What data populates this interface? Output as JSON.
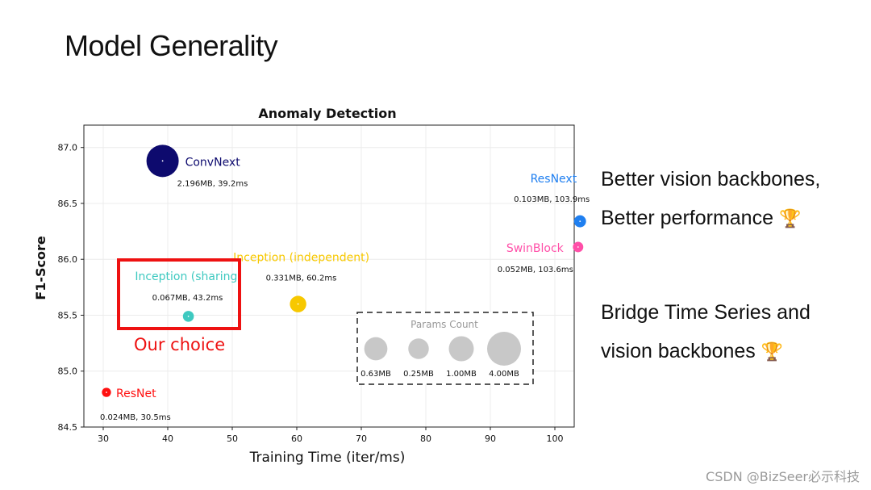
{
  "slide": {
    "title": "Model Generality",
    "bullets": [
      "Better vision backbones,",
      "Better performance",
      "Bridge Time Series and",
      "vision backbones"
    ],
    "trophy": "🏆",
    "watermark": "CSDN @BizSeer必示科技"
  },
  "chart_data": {
    "type": "scatter",
    "title": "Anomaly Detection",
    "xlabel": "Training Time (iter/ms)",
    "ylabel": "F1-Score",
    "xlim": [
      27,
      103
    ],
    "ylim": [
      84.5,
      87.2
    ],
    "xticks": [
      30,
      40,
      50,
      60,
      70,
      80,
      90,
      100
    ],
    "yticks": [
      84.5,
      85.0,
      85.5,
      86.0,
      86.5,
      87.0
    ],
    "ytick_labels": [
      "84.5",
      "85.0",
      "85.5",
      "86.0",
      "86.5",
      "87.0"
    ],
    "grid": true,
    "points": [
      {
        "name": "ConvNext",
        "x": 39.2,
        "y": 86.88,
        "params_mb": 2.196,
        "info": "2.196MB, 39.2ms",
        "color": "#0d0a6e"
      },
      {
        "name": "ResNext",
        "x": 103.9,
        "y": 86.34,
        "params_mb": 0.103,
        "info": "0.103MB, 103.9ms",
        "color": "#1f7ff0"
      },
      {
        "name": "SwinBlock",
        "x": 103.6,
        "y": 86.11,
        "params_mb": 0.052,
        "info": "0.052MB, 103.6ms",
        "color": "#ff4fa8"
      },
      {
        "name": "Inception (independent)",
        "x": 60.2,
        "y": 85.6,
        "params_mb": 0.331,
        "info": "0.331MB, 60.2ms",
        "color": "#f7c800"
      },
      {
        "name": "Inception (sharing)",
        "x": 43.2,
        "y": 85.49,
        "params_mb": 0.067,
        "info": "0.067MB, 43.2ms",
        "color": "#3ec9c0"
      },
      {
        "name": "ResNet",
        "x": 30.5,
        "y": 84.81,
        "params_mb": 0.024,
        "info": "0.024MB, 30.5ms",
        "color": "#ff1010"
      }
    ],
    "params_legend": {
      "title": "Params Count",
      "items": [
        {
          "label": "0.63MB",
          "size": 0.63
        },
        {
          "label": "0.25MB",
          "size": 0.25
        },
        {
          "label": "1.00MB",
          "size": 1.0
        },
        {
          "label": "4.00MB",
          "size": 4.0
        }
      ]
    },
    "highlight": {
      "label": "Our choice",
      "target": "Inception (sharing)",
      "color": "#ee1111"
    }
  }
}
